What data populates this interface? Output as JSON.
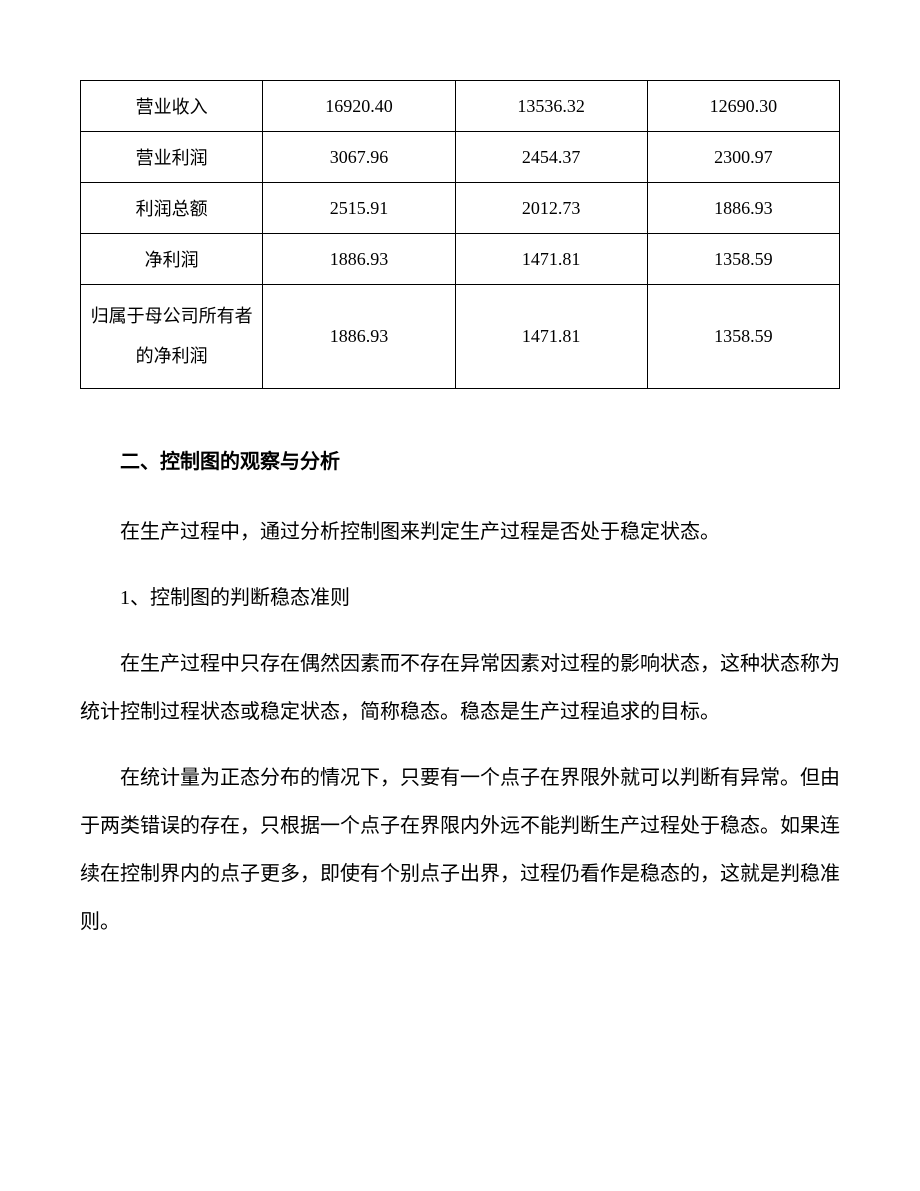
{
  "table": {
    "rows": [
      {
        "label": "营业收入",
        "c1": "16920.40",
        "c2": "13536.32",
        "c3": "12690.30"
      },
      {
        "label": "营业利润",
        "c1": "3067.96",
        "c2": "2454.37",
        "c3": "2300.97"
      },
      {
        "label": "利润总额",
        "c1": "2515.91",
        "c2": "2012.73",
        "c3": "1886.93"
      },
      {
        "label": "净利润",
        "c1": "1886.93",
        "c2": "1471.81",
        "c3": "1358.59"
      },
      {
        "label": "归属于母公司所有者的净利润",
        "c1": "1886.93",
        "c2": "1471.81",
        "c3": "1358.59"
      }
    ]
  },
  "heading": "二、控制图的观察与分析",
  "paragraphs": {
    "p1": "在生产过程中，通过分析控制图来判定生产过程是否处于稳定状态。",
    "p2": "1、控制图的判断稳态准则",
    "p3": "在生产过程中只存在偶然因素而不存在异常因素对过程的影响状态，这种状态称为统计控制过程状态或稳定状态，简称稳态。稳态是生产过程追求的目标。",
    "p4": "在统计量为正态分布的情况下，只要有一个点子在界限外就可以判断有异常。但由于两类错误的存在，只根据一个点子在界限内外远不能判断生产过程处于稳态。如果连续在控制界内的点子更多，即使有个别点子出界，过程仍看作是稳态的，这就是判稳准则。"
  }
}
